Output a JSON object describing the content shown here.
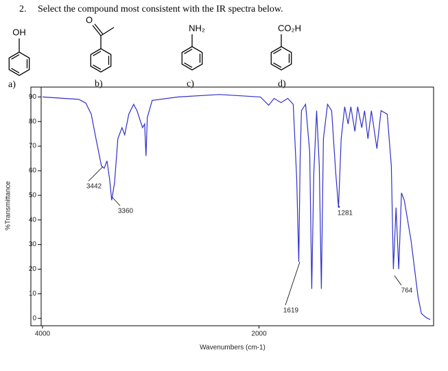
{
  "question": {
    "number": "2.",
    "text": "Select the compound most consistent with the IR spectra below."
  },
  "options": [
    {
      "letter": "a)",
      "group": "OH"
    },
    {
      "letter": "b)",
      "group": "O"
    },
    {
      "letter": "c)",
      "group": "NH₂"
    },
    {
      "letter": "d)",
      "group": "CO₂H"
    }
  ],
  "chart_data": {
    "type": "line",
    "x_label": "Wavenumbers (cm-1)",
    "y_label": "%Transmittance",
    "color": "#2f2fc8",
    "x": [
      4000,
      3665,
      3600,
      3550,
      3506,
      3456,
      3430,
      3405,
      3380,
      3361,
      3335,
      3304,
      3266,
      3241,
      3203,
      3158,
      3127,
      3095,
      3076,
      3057,
      3044,
      3032,
      2987,
      2747,
      2367,
      1987,
      1911,
      1861,
      1797,
      1734,
      1684,
      1652,
      1633,
      1620,
      1608,
      1570,
      1532,
      1513,
      1494,
      1468,
      1443,
      1424,
      1405,
      1367,
      1329,
      1291,
      1266,
      1241,
      1209,
      1177,
      1152,
      1114,
      1089,
      1051,
      1025,
      994,
      962,
      911,
      873,
      816,
      778,
      759,
      734,
      709,
      684,
      658,
      595,
      532,
      500,
      456,
      418
    ],
    "values": [
      90,
      89,
      87.5,
      83,
      73,
      62,
      61,
      64,
      56.5,
      48,
      55,
      73,
      77.5,
      74.6,
      83,
      87,
      84.4,
      80,
      77.5,
      79,
      66,
      81.6,
      88.6,
      90,
      91,
      90,
      86.6,
      89.4,
      87.7,
      89.4,
      87,
      56.5,
      23,
      65,
      84.4,
      87,
      67.7,
      12,
      59,
      84.4,
      62,
      12,
      73,
      87,
      84.4,
      59,
      45,
      73,
      86,
      79,
      86,
      76,
      86,
      77.5,
      84.4,
      73,
      84.4,
      69,
      84.4,
      83,
      62,
      20,
      45,
      20,
      51,
      48,
      31.5,
      9,
      2,
      0.3,
      -0.5
    ],
    "annotations": [
      "3442",
      "3360",
      "1619",
      "1281",
      "764"
    ],
    "xlim": [
      4000,
      400
    ],
    "ylim": [
      -3,
      94
    ],
    "xticks": [
      4000,
      2000
    ],
    "yticks": [
      0,
      10,
      20,
      30,
      40,
      50,
      60,
      70,
      80,
      90
    ]
  }
}
